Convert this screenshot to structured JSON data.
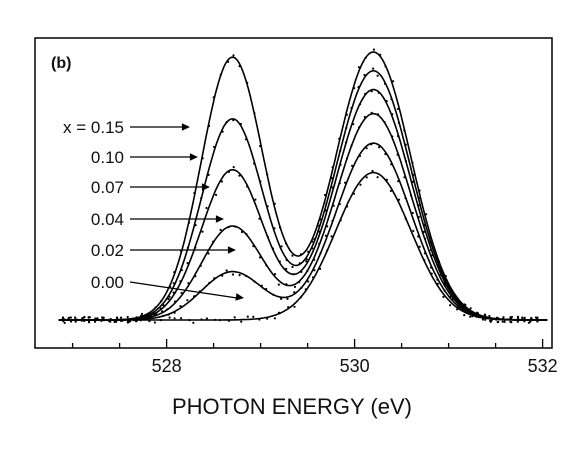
{
  "chart_data": {
    "type": "line",
    "panel_label": "(b)",
    "xlabel": "PHOTON ENERGY (eV)",
    "ylabel": "",
    "xlim": [
      526.6,
      532.1
    ],
    "ylim": [
      0,
      1.0
    ],
    "x_ticks": [
      528,
      530,
      532
    ],
    "x_tick_labels": [
      "528",
      "530",
      "532"
    ],
    "grid": false,
    "legend": "inline labels with arrows, left side",
    "data_markers": "small dots scattered along each fitted curve",
    "series": [
      {
        "name": "x = 0.15",
        "label": "x = 0.15",
        "prepeak": 0.98,
        "main": 1.0
      },
      {
        "name": "0.10",
        "label": "0.10",
        "prepeak": 0.75,
        "main": 0.93
      },
      {
        "name": "0.07",
        "label": "0.07",
        "prepeak": 0.56,
        "main": 0.86
      },
      {
        "name": "0.04",
        "label": "0.04",
        "prepeak": 0.35,
        "main": 0.77
      },
      {
        "name": "0.02",
        "label": "0.02",
        "prepeak": 0.18,
        "main": 0.66
      },
      {
        "name": "0.00",
        "label": "0.00",
        "prepeak": 0.0,
        "main": 0.55
      }
    ],
    "prepeak_center_ev": 528.7,
    "main_peak_center_ev": 530.2
  }
}
